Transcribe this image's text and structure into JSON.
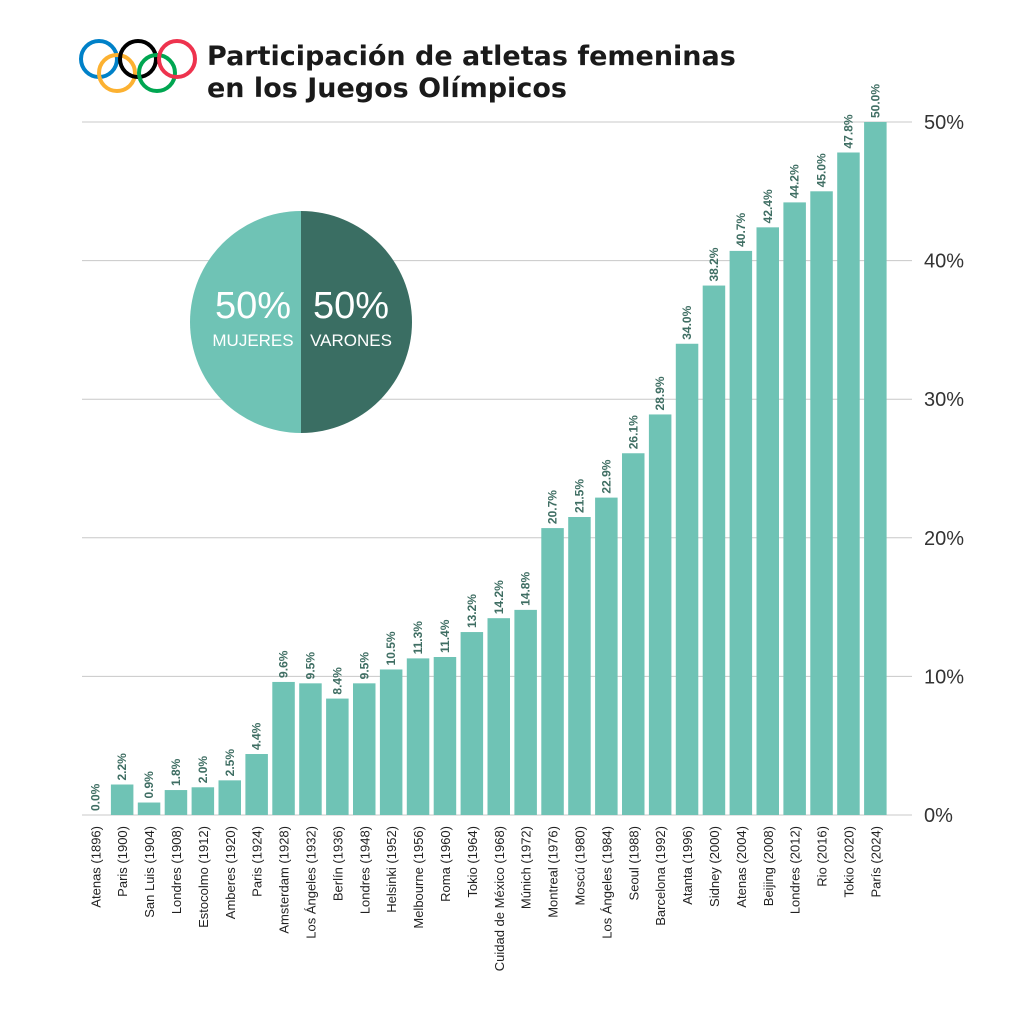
{
  "title": {
    "line1": "Participación de atletas femeninas",
    "line2": "en los Juegos Olímpicos"
  },
  "colors": {
    "bar": "#6fc3b5",
    "value_label": "#3f6e63",
    "grid": "#c8c8c8",
    "pie_women": "#6fc3b5",
    "pie_men": "#3a6e63",
    "rings": [
      "#0081c8",
      "#fcb131",
      "#000000",
      "#00a651",
      "#ee334e"
    ]
  },
  "logo": {
    "icon": "olympic-rings-icon"
  },
  "pie": {
    "women": {
      "pct_label": "50%",
      "label": "MUJERES",
      "value": 50
    },
    "men": {
      "pct_label": "50%",
      "label": "VARONES",
      "value": 50
    }
  },
  "chart_data": {
    "type": "bar",
    "title": "Participación de atletas femeninas en los Juegos Olímpicos",
    "ylim": [
      0,
      50
    ],
    "yticks": [
      "0%",
      "10%",
      "20%",
      "30%",
      "40%",
      "50%"
    ],
    "ytick_values": [
      0,
      10,
      20,
      30,
      40,
      50
    ],
    "y_axis_side": "right",
    "grid": true,
    "categories": [
      "Atenas (1896)",
      "Paris (1900)",
      "San Luis (1904)",
      "Londres (1908)",
      "Estocolmo (1912)",
      "Amberes (1920)",
      "Paris (1924)",
      "Amsterdam (1928)",
      "Los Ángeles (1932)",
      "Berlín (1936)",
      "Londres (1948)",
      "Helsinki (1952)",
      "Melbourne (1956)",
      "Roma (1960)",
      "Tokio (1964)",
      "Cuidad de México (1968)",
      "Múnich (1972)",
      "Montreal (1976)",
      "Moscú (1980)",
      "Los Ángeles (1984)",
      "Seoul (1988)",
      "Barcelona (1992)",
      "Atanta (1996)",
      "Sidney (2000)",
      "Atenas (2004)",
      "Beijing (2008)",
      "Londres (2012)",
      "Rio (2016)",
      "Tokio (2020)",
      "París (2024)"
    ],
    "values": [
      0.0,
      2.2,
      0.9,
      1.8,
      2.0,
      2.5,
      4.4,
      9.6,
      9.5,
      8.4,
      9.5,
      10.5,
      11.3,
      11.4,
      13.2,
      14.2,
      14.8,
      20.7,
      21.5,
      22.9,
      26.1,
      28.9,
      34.0,
      38.2,
      40.7,
      42.4,
      44.2,
      45.0,
      47.8,
      50.0
    ],
    "value_labels": [
      "0.0%",
      "2.2%",
      "0.9%",
      "1.8%",
      "2.0%",
      "2.5%",
      "4.4%",
      "9.6%",
      "9.5%",
      "8.4%",
      "9.5%",
      "10.5%",
      "11.3%",
      "11.4%",
      "13.2%",
      "14.2%",
      "14.8%",
      "20.7%",
      "21.5%",
      "22.9%",
      "26.1%",
      "28.9%",
      "34.0%",
      "38.2%",
      "40.7%",
      "42.4%",
      "44.2%",
      "45.0%",
      "47.8%",
      "50.0%"
    ]
  }
}
